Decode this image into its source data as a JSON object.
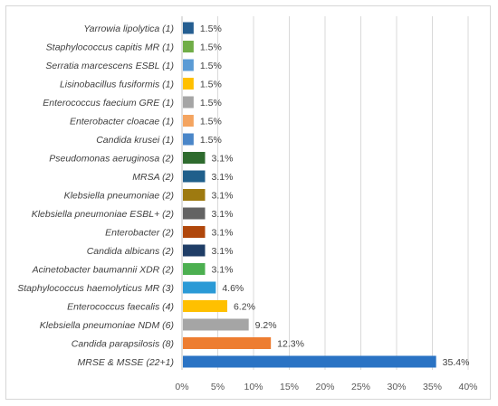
{
  "chart_data": {
    "type": "bar",
    "orientation": "horizontal",
    "title": "",
    "xlabel": "",
    "ylabel": "",
    "xlim": [
      0,
      40
    ],
    "x_ticks": [
      "0%",
      "5%",
      "10%",
      "15%",
      "20%",
      "25%",
      "30%",
      "35%",
      "40%"
    ],
    "grid": true,
    "legend": "none",
    "categories": [
      "Yarrowia lipolytica  (1)",
      "Staphylococcus capitis MR (1)",
      "Serratia marcescens ESBL (1)",
      "Lisinobacillus fusiformis  (1)",
      "Enterococcus faecium GRE (1)",
      "Enterobacter cloacae  (1)",
      "Candida krusei  (1)",
      "Pseudomonas aeruginosa  (2)",
      "MRSA (2)",
      "Klebsiella pneumoniae  (2)",
      "Klebsiella pneumoniae ESBL+ (2)",
      "Enterobacter  (2)",
      "Candida albicans  (2)",
      "Acinetobacter baumannii XDR (2)",
      "Staphylococcus haemolyticus MR (3)",
      "Enterococcus faecalis  (4)",
      "Klebsiella pneumoniae NDM (6)",
      "Candida parapsilosis  (8)",
      "MRSE & MSSE (22+1)"
    ],
    "values": [
      1.5,
      1.5,
      1.5,
      1.5,
      1.5,
      1.5,
      1.5,
      3.1,
      3.1,
      3.1,
      3.1,
      3.1,
      3.1,
      3.1,
      4.6,
      6.2,
      9.2,
      12.3,
      35.4
    ],
    "value_labels": [
      "1.5%",
      "1.5%",
      "1.5%",
      "1.5%",
      "1.5%",
      "1.5%",
      "1.5%",
      "3.1%",
      "3.1%",
      "3.1%",
      "3.1%",
      "3.1%",
      "3.1%",
      "3.1%",
      "4.6%",
      "6.2%",
      "9.2%",
      "12.3%",
      "35.4%"
    ],
    "colors": [
      "#255e91",
      "#70ad47",
      "#5b9bd5",
      "#ffc000",
      "#a5a5a5",
      "#f4a460",
      "#4a86c8",
      "#2e6b2e",
      "#1f5f8b",
      "#9e7a10",
      "#636363",
      "#b0470b",
      "#1f3d66",
      "#4caf50",
      "#2a9ad6",
      "#ffc000",
      "#a5a5a5",
      "#ed7d31",
      "#2a73c4"
    ]
  }
}
